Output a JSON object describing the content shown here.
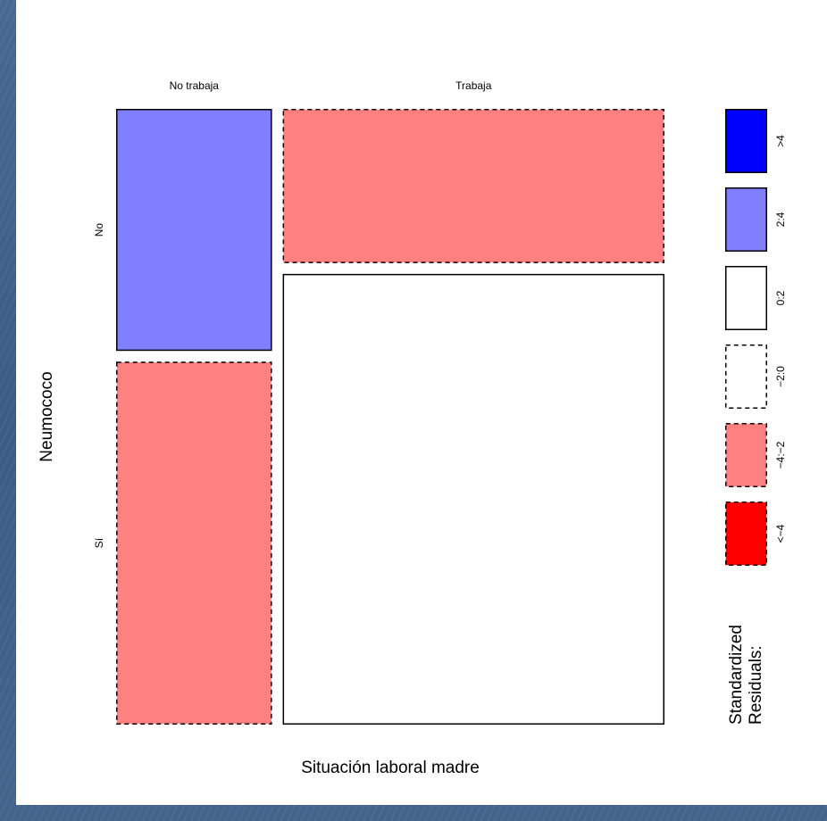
{
  "chart_data": {
    "type": "mosaic",
    "title": "",
    "xlabel": "Situación laboral madre",
    "ylabel": "Neumococo",
    "x_categories": [
      "No trabaja",
      "Trabaja"
    ],
    "y_categories": [
      "No",
      "Sí"
    ],
    "x_proportions": [
      0.29,
      0.71
    ],
    "cells": [
      {
        "x": "No trabaja",
        "y": "No",
        "proportion_within_x": 0.4,
        "residual_band": "2:4"
      },
      {
        "x": "No trabaja",
        "y": "Sí",
        "proportion_within_x": 0.6,
        "residual_band": "-4:-2"
      },
      {
        "x": "Trabaja",
        "y": "No",
        "proportion_within_x": 0.255,
        "residual_band": "-4:-2"
      },
      {
        "x": "Trabaja",
        "y": "Sí",
        "proportion_within_x": 0.745,
        "residual_band": "0:2"
      }
    ],
    "legend": {
      "title": "Standardized Residuals:",
      "position": "right",
      "bands": [
        {
          "label": ">4",
          "color": "#0000ff",
          "dashed": false
        },
        {
          "label": "2:4",
          "color": "#8080ff",
          "dashed": false
        },
        {
          "label": "0:2",
          "color": "#ffffff",
          "dashed": false
        },
        {
          "label": "−2:0",
          "color": "#ffffff",
          "dashed": true
        },
        {
          "label": "−4:−2",
          "color": "#ff8080",
          "dashed": true
        },
        {
          "label": "<−4",
          "color": "#ff0000",
          "dashed": true
        }
      ]
    },
    "colors": {
      "background": "#3f5f8a",
      "panel": "#ffffff"
    }
  }
}
